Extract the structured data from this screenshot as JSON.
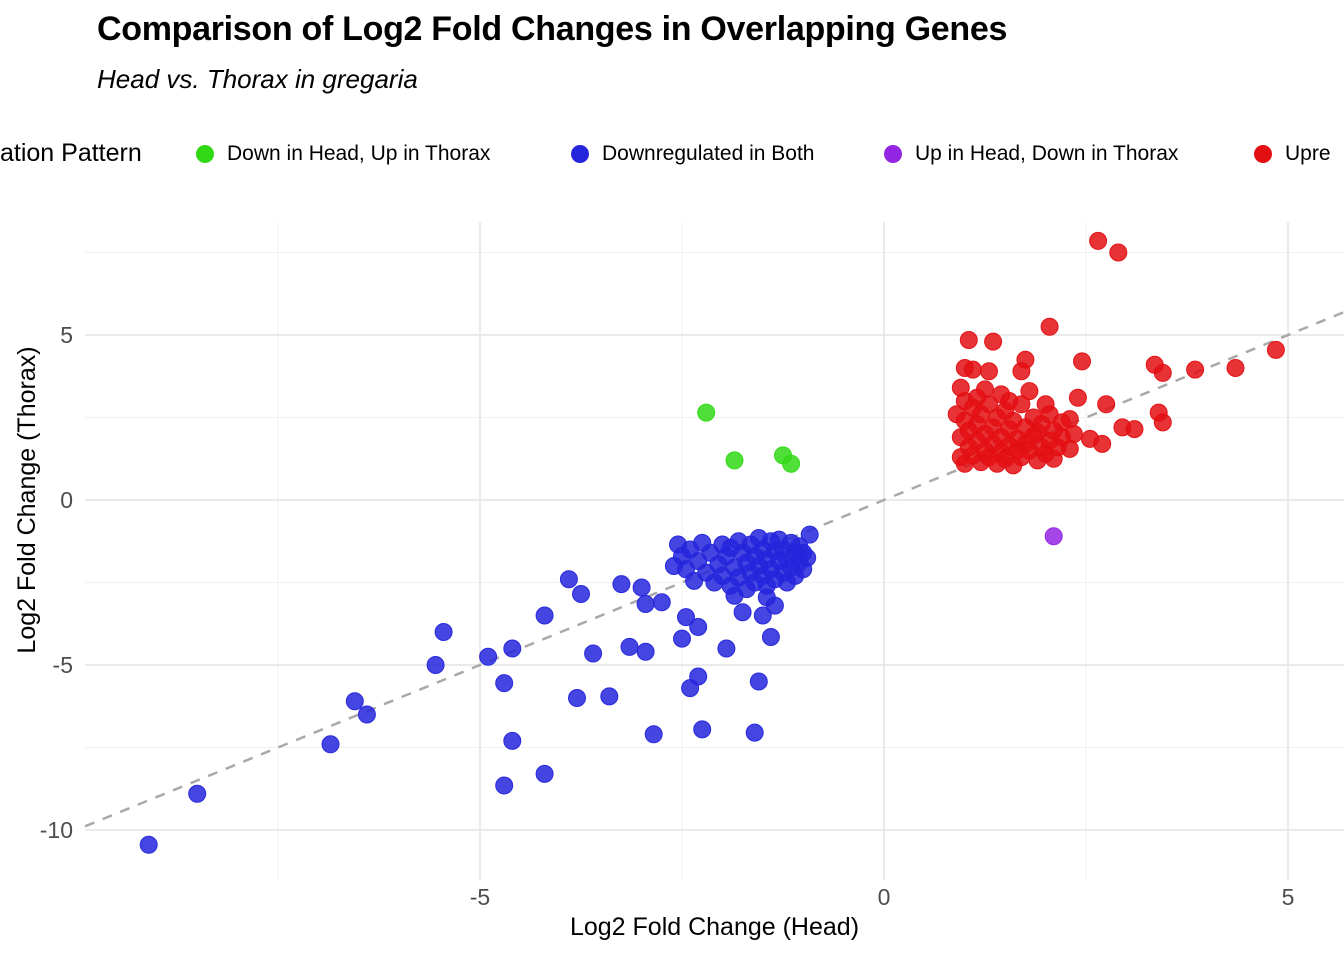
{
  "legend": {
    "title": "ation Pattern",
    "items": [
      {
        "label": "Down in Head, Up in Thorax",
        "color": "#31D915"
      },
      {
        "label": "Downregulated in Both",
        "color": "#2525DC"
      },
      {
        "label": "Up in Head, Down in Thorax",
        "color": "#9425E3"
      },
      {
        "label": "Upre",
        "color": "#E30F13"
      }
    ]
  },
  "chart_data": {
    "type": "scatter",
    "title": "Comparison of Log2 Fold Changes in Overlapping Genes",
    "subtitle": "Head vs. Thorax in gregaria",
    "xlabel": "Log2 Fold Change (Head)",
    "ylabel": "Log2 Fold Change (Thorax)",
    "xlim": [
      -9.89,
      5.69
    ],
    "ylim": [
      -11.45,
      8.42
    ],
    "x_ticks": [
      -5,
      0,
      5
    ],
    "y_ticks": [
      -10,
      -5,
      0,
      5
    ],
    "x_minor_ticks": [
      -7.5,
      -2.5,
      2.5
    ],
    "y_minor_ticks": [
      -7.5,
      -2.5,
      2.5,
      7.5
    ],
    "grid": true,
    "legend_position": "top",
    "identity_line": {
      "slope": 1,
      "intercept": 0,
      "style": "dashed",
      "color": "#A9A9A9"
    },
    "series": [
      {
        "name": "Downregulated in Both",
        "color": "#2525DC",
        "points": [
          [
            -9.1,
            -10.45
          ],
          [
            -8.5,
            -8.9
          ],
          [
            -6.85,
            -7.4
          ],
          [
            -6.55,
            -6.1
          ],
          [
            -6.4,
            -6.5
          ],
          [
            -5.55,
            -5.0
          ],
          [
            -5.45,
            -4.0
          ],
          [
            -4.9,
            -4.75
          ],
          [
            -4.7,
            -5.55
          ],
          [
            -4.6,
            -4.5
          ],
          [
            -4.6,
            -7.3
          ],
          [
            -4.7,
            -8.65
          ],
          [
            -4.2,
            -8.3
          ],
          [
            -4.2,
            -3.5
          ],
          [
            -3.9,
            -2.4
          ],
          [
            -3.75,
            -2.85
          ],
          [
            -3.8,
            -6.0
          ],
          [
            -3.4,
            -5.95
          ],
          [
            -3.6,
            -4.65
          ],
          [
            -3.15,
            -4.45
          ],
          [
            -2.95,
            -4.6
          ],
          [
            -2.85,
            -7.1
          ],
          [
            -2.25,
            -6.95
          ],
          [
            -2.75,
            -3.1
          ],
          [
            -2.95,
            -3.15
          ],
          [
            -3.0,
            -2.65
          ],
          [
            -3.25,
            -2.55
          ],
          [
            -2.4,
            -5.7
          ],
          [
            -2.3,
            -5.35
          ],
          [
            -1.55,
            -5.5
          ],
          [
            -1.6,
            -7.05
          ],
          [
            -2.5,
            -4.2
          ],
          [
            -2.3,
            -3.85
          ],
          [
            -2.45,
            -3.55
          ],
          [
            -1.95,
            -4.5
          ],
          [
            -1.75,
            -3.4
          ],
          [
            -1.5,
            -3.5
          ],
          [
            -1.4,
            -4.15
          ],
          [
            -1.35,
            -3.2
          ],
          [
            -2.6,
            -2.0
          ],
          [
            -1.85,
            -2.9
          ],
          [
            -1.45,
            -2.95
          ],
          [
            -0.92,
            -1.05
          ],
          [
            -2.55,
            -1.35
          ],
          [
            -2.5,
            -1.7
          ],
          [
            -2.45,
            -2.1
          ],
          [
            -2.4,
            -1.5
          ],
          [
            -2.35,
            -2.45
          ],
          [
            -2.3,
            -1.85
          ],
          [
            -2.25,
            -1.3
          ],
          [
            -2.2,
            -2.2
          ],
          [
            -2.15,
            -1.6
          ],
          [
            -2.1,
            -2.5
          ],
          [
            -2.05,
            -1.95
          ],
          [
            -2.0,
            -1.35
          ],
          [
            -2.0,
            -2.3
          ],
          [
            -1.95,
            -1.7
          ],
          [
            -1.9,
            -2.6
          ],
          [
            -1.9,
            -1.45
          ],
          [
            -1.85,
            -2.05
          ],
          [
            -1.8,
            -1.25
          ],
          [
            -1.8,
            -2.35
          ],
          [
            -1.75,
            -1.6
          ],
          [
            -1.7,
            -2.7
          ],
          [
            -1.7,
            -1.9
          ],
          [
            -1.65,
            -1.35
          ],
          [
            -1.65,
            -2.2
          ],
          [
            -1.6,
            -1.7
          ],
          [
            -1.6,
            -2.5
          ],
          [
            -1.55,
            -1.15
          ],
          [
            -1.55,
            -2.0
          ],
          [
            -1.5,
            -1.5
          ],
          [
            -1.5,
            -2.3
          ],
          [
            -1.45,
            -1.8
          ],
          [
            -1.45,
            -2.6
          ],
          [
            -1.4,
            -1.25
          ],
          [
            -1.4,
            -2.1
          ],
          [
            -1.35,
            -1.55
          ],
          [
            -1.35,
            -2.4
          ],
          [
            -1.3,
            -1.85
          ],
          [
            -1.3,
            -1.2
          ],
          [
            -1.25,
            -2.2
          ],
          [
            -1.25,
            -1.5
          ],
          [
            -1.2,
            -1.8
          ],
          [
            -1.2,
            -2.5
          ],
          [
            -1.15,
            -1.3
          ],
          [
            -1.15,
            -2.05
          ],
          [
            -1.1,
            -1.6
          ],
          [
            -1.1,
            -2.3
          ],
          [
            -1.05,
            -1.4
          ],
          [
            -1.05,
            -1.9
          ],
          [
            -1.0,
            -1.6
          ],
          [
            -1.0,
            -2.1
          ],
          [
            -0.95,
            -1.75
          ]
        ]
      },
      {
        "name": "Down in Head, Up in Thorax",
        "color": "#31D915",
        "points": [
          [
            -2.2,
            2.65
          ],
          [
            -1.85,
            1.2
          ],
          [
            -1.25,
            1.35
          ],
          [
            -1.15,
            1.1
          ]
        ]
      },
      {
        "name": "Upre",
        "color": "#E30F13",
        "points": [
          [
            2.65,
            7.85
          ],
          [
            2.9,
            7.5
          ],
          [
            2.05,
            5.25
          ],
          [
            1.05,
            4.85
          ],
          [
            1.35,
            4.8
          ],
          [
            1.0,
            4.0
          ],
          [
            1.1,
            3.95
          ],
          [
            1.3,
            3.9
          ],
          [
            1.7,
            3.9
          ],
          [
            1.75,
            4.25
          ],
          [
            2.45,
            4.2
          ],
          [
            3.35,
            4.1
          ],
          [
            3.45,
            3.85
          ],
          [
            3.85,
            3.95
          ],
          [
            4.35,
            4.0
          ],
          [
            4.85,
            4.55
          ],
          [
            2.4,
            3.1
          ],
          [
            2.75,
            2.9
          ],
          [
            3.4,
            2.65
          ],
          [
            3.45,
            2.35
          ],
          [
            2.95,
            2.2
          ],
          [
            3.1,
            2.15
          ],
          [
            2.55,
            1.85
          ],
          [
            2.7,
            1.7
          ],
          [
            2.3,
            1.55
          ],
          [
            2.35,
            2.0
          ],
          [
            2.3,
            2.45
          ],
          [
            2.05,
            2.6
          ],
          [
            0.95,
            1.3
          ],
          [
            0.95,
            1.9
          ],
          [
            1.0,
            2.4
          ],
          [
            1.0,
            1.1
          ],
          [
            1.05,
            1.6
          ],
          [
            1.05,
            2.1
          ],
          [
            1.1,
            2.8
          ],
          [
            1.1,
            1.35
          ],
          [
            1.15,
            1.8
          ],
          [
            1.15,
            2.3
          ],
          [
            1.2,
            1.15
          ],
          [
            1.2,
            2.6
          ],
          [
            1.25,
            1.5
          ],
          [
            1.25,
            2.0
          ],
          [
            1.3,
            2.9
          ],
          [
            1.3,
            1.3
          ],
          [
            1.35,
            1.7
          ],
          [
            1.35,
            2.2
          ],
          [
            1.4,
            1.1
          ],
          [
            1.4,
            2.5
          ],
          [
            1.45,
            1.45
          ],
          [
            1.45,
            1.9
          ],
          [
            1.5,
            2.7
          ],
          [
            1.5,
            1.25
          ],
          [
            1.55,
            1.65
          ],
          [
            1.55,
            2.15
          ],
          [
            1.6,
            1.05
          ],
          [
            1.6,
            2.4
          ],
          [
            1.65,
            1.5
          ],
          [
            1.65,
            1.85
          ],
          [
            1.7,
            2.9
          ],
          [
            1.7,
            1.3
          ],
          [
            1.75,
            1.7
          ],
          [
            1.75,
            2.2
          ],
          [
            1.8,
            3.3
          ],
          [
            1.8,
            1.5
          ],
          [
            1.85,
            1.95
          ],
          [
            1.85,
            2.5
          ],
          [
            1.9,
            1.2
          ],
          [
            1.9,
            2.05
          ],
          [
            1.95,
            1.6
          ],
          [
            1.95,
            2.3
          ],
          [
            2.0,
            2.9
          ],
          [
            2.0,
            1.4
          ],
          [
            2.05,
            1.8
          ],
          [
            2.1,
            2.1
          ],
          [
            2.1,
            1.25
          ],
          [
            2.15,
            1.6
          ],
          [
            2.2,
            2.35
          ],
          [
            2.2,
            1.9
          ],
          [
            1.15,
            3.1
          ],
          [
            1.0,
            3.0
          ],
          [
            0.9,
            2.6
          ],
          [
            0.95,
            3.4
          ],
          [
            1.55,
            3.0
          ],
          [
            1.45,
            3.2
          ],
          [
            1.25,
            3.35
          ]
        ]
      },
      {
        "name": "Up in Head, Down in Thorax",
        "color": "#9425E3",
        "points": [
          [
            2.1,
            -1.1
          ]
        ]
      }
    ]
  }
}
